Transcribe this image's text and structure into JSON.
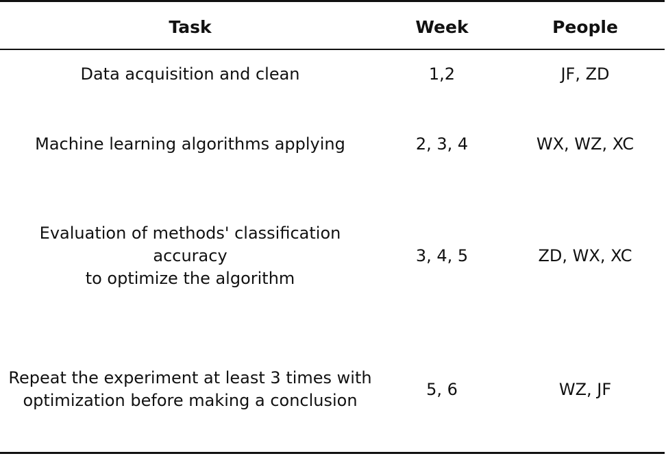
{
  "table": {
    "headers": {
      "task": "Task",
      "week": "Week",
      "people": "People"
    },
    "rows": [
      {
        "task": "Data acquisition and clean",
        "week": "1,2",
        "people": "JF, ZD"
      },
      {
        "task": "Machine learning algorithms applying",
        "week": "2, 3, 4",
        "people": "WX, WZ, XC"
      },
      {
        "task": "Evaluation of methods' classification accuracy\nto optimize the algorithm",
        "week": "3, 4, 5",
        "people": "ZD, WX, XC"
      },
      {
        "task": "Repeat the experiment at least 3 times with\noptimization before making a conclusion",
        "week": "5, 6",
        "people": "WZ, JF"
      }
    ]
  }
}
